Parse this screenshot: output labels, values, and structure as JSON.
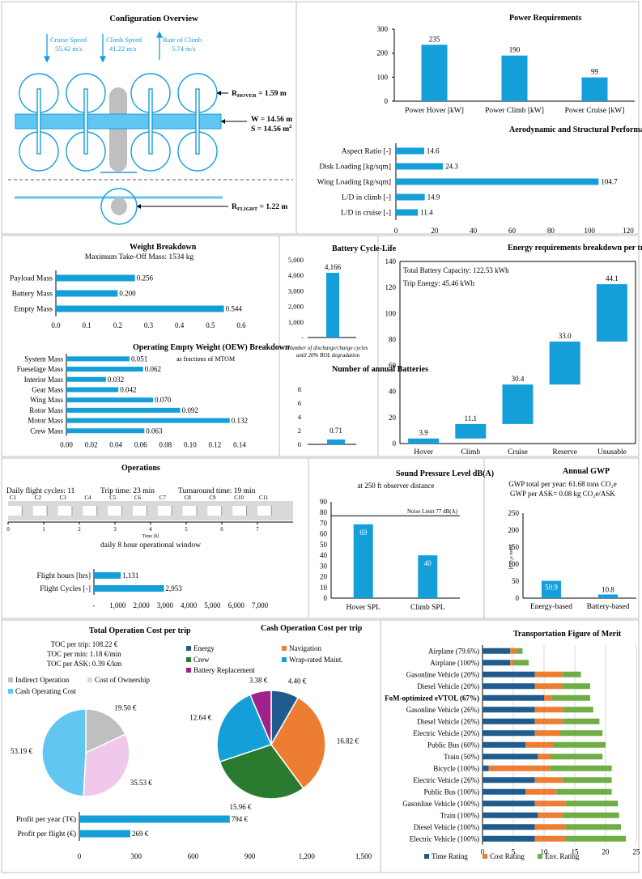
{
  "colors": {
    "blue": "#159fd8",
    "orange": "#ed7d31",
    "green": "#70ad47",
    "darkgreen": "#2a7a30",
    "navy": "#1f5b8c",
    "purple": "#a0208c",
    "pink": "#f0c8ec",
    "gray": "#bfbfbf",
    "lightblue": "#61c6f2",
    "hatch": "#d9d9d9"
  },
  "config": {
    "title": "Configuration Overview",
    "cruise_label": "Cruise Speed",
    "cruise_value": "55.42 m/s",
    "climb_label": "Climb Speed",
    "climb_value": "41.22 m/s",
    "rate_label": "Rate of Climb",
    "rate_value": "5.74 m/s",
    "r_hover": "R",
    "r_hover_sub": "HOVER",
    "r_hover_val": " = 1.59 m",
    "w_text": "W = 14.56 m",
    "s_text": "S = 14.56 m",
    "s_sup": "2",
    "r_flight": "R",
    "r_flight_sub": "FLIGHT",
    "r_flight_val": " = 1.22 m"
  },
  "texts": {
    "mtom": "Maximum Take-Off Mass: 1534 kg",
    "oew_note": "as fractions of MTOM",
    "cycle_caption1": "Number of discharge/charge cycles",
    "cycle_caption2": "until 20% BOL degradation",
    "battery_capacity": "Total Battery Capacity: 122.53 kWh",
    "trip_energy": "Trip Energy: 45.46 kWh",
    "daily_cycles": "Daily flight cycles: 11",
    "trip_time": "Trip time: 23 min",
    "turnaround": "Turnaround time: 19 min",
    "time_axis": "Time [h]",
    "window": "daily 8 hour operational window",
    "spl_subtitle": "at 250 ft observer distance",
    "noise_limit": "Noise Limit 77 dB(A)",
    "gwp_year": "GWP total per year: 61.68 tons CO₂e",
    "gwp_ask": "GWP per ASK= 0.08 kg CO₂e/ASK",
    "gwp_unit": "[CO₂e tons]",
    "toc_trip": "TOC per trip: 108.22 €",
    "toc_min": "TOC per min: 1.18 €/min",
    "toc_ask": "TOC per ASK: 0.39 €/km"
  },
  "chart_data": [
    {
      "id": "power",
      "type": "bar",
      "title": "Power Requirements",
      "categories": [
        "Power Hover [kW]",
        "Power Climb [kW]",
        "Power Cruise [kW]"
      ],
      "values": [
        235,
        190,
        99
      ],
      "ylim": [
        0,
        300
      ],
      "yticks": [
        0,
        100,
        200,
        300
      ]
    },
    {
      "id": "aero",
      "type": "bar",
      "orientation": "horizontal",
      "title": "Aerodynamic and Structural Performance Metrics",
      "categories": [
        "Aspect Ratio [-]",
        "Disk Loading [kg/sqm]",
        "Wing Loading [kg/sqm]",
        "L/D in climb [-]",
        "L/D in cruise [-]"
      ],
      "values": [
        14.6,
        24.3,
        104.7,
        14.9,
        11.4
      ],
      "xlim": [
        0,
        120
      ],
      "xticks": [
        0,
        20,
        40,
        60,
        80,
        100,
        120
      ]
    },
    {
      "id": "weight",
      "type": "bar",
      "orientation": "horizontal",
      "title": "Weight Breakdown",
      "categories": [
        "Payload Mass",
        "Battery Mass",
        "Empty Mass"
      ],
      "values": [
        0.256,
        0.2,
        0.544
      ],
      "xlim": [
        0,
        0.6
      ],
      "xticks": [
        "0.0",
        "0.1",
        "0.2",
        "0.3",
        "0.4",
        "0.5",
        "0.6"
      ]
    },
    {
      "id": "oew",
      "type": "bar",
      "orientation": "horizontal",
      "title": "Operating Empty Weight (OEW) Breakdown",
      "categories": [
        "System Mass",
        "Fueselage Mass",
        "Interior Mass",
        "Gear Mass",
        "Wing Mass",
        "Rotor Mass",
        "Motor Mass",
        "Crew Mass"
      ],
      "values": [
        0.051,
        0.062,
        0.032,
        0.042,
        0.07,
        0.092,
        0.132,
        0.063
      ],
      "xlim": [
        0,
        0.14
      ],
      "xticks": [
        "0.00",
        "0.02",
        "0.04",
        "0.06",
        "0.08",
        "0.10",
        "0.12",
        "0.14"
      ]
    },
    {
      "id": "cycle",
      "type": "bar",
      "title": "Battery Cycle-Life",
      "values": [
        4166
      ],
      "labels": [
        "4,166"
      ],
      "ylim": [
        0,
        5000
      ],
      "yticks": [
        "-",
        "1,000",
        "2,000",
        "3,000",
        "4,000",
        "5,000"
      ]
    },
    {
      "id": "annual_batt",
      "type": "bar",
      "title": "Number of annual Batteries",
      "values": [
        0.71
      ],
      "ylim": [
        0,
        8
      ],
      "yticks": [
        0,
        2,
        4,
        6,
        8
      ]
    },
    {
      "id": "energy",
      "type": "waterfall",
      "title": "Energy requirements breakdown per trip [kWh]",
      "categories": [
        "Hover",
        "Climb",
        "Cruise",
        "Reserve",
        "Unusable"
      ],
      "values": [
        3.9,
        11.1,
        30.4,
        33.0,
        44.1
      ],
      "ylim": [
        0,
        140
      ],
      "yticks": [
        0,
        20,
        40,
        60,
        80,
        100,
        120,
        140
      ]
    },
    {
      "id": "ops_timeline",
      "type": "bar",
      "title": "Operations",
      "categories": [
        "C1",
        "C2",
        "C3",
        "C4",
        "C5",
        "C6",
        "C7",
        "C8",
        "C9",
        "C10",
        "C11"
      ],
      "xticks": [
        0,
        1,
        2,
        3,
        4,
        5,
        6,
        7
      ],
      "xlim": [
        0,
        8
      ]
    },
    {
      "id": "ops_hours",
      "type": "bar",
      "orientation": "horizontal",
      "categories": [
        "Flight hours [hrs]",
        "Flight Cycles [-]"
      ],
      "values": [
        1131,
        2953
      ],
      "labels": [
        "1,131",
        "2,953"
      ],
      "xlim": [
        0,
        7000
      ],
      "xticks": [
        "-",
        "1,000",
        "2,000",
        "3,000",
        "4,000",
        "5,000",
        "6,000",
        "7,000"
      ]
    },
    {
      "id": "spl",
      "type": "bar",
      "title": "Sound Pressure Level dB(A)",
      "categories": [
        "Hover SPL",
        "Climb SPL"
      ],
      "values": [
        69,
        40
      ],
      "ylim": [
        0,
        90
      ],
      "yticks": [
        0,
        10,
        20,
        30,
        40,
        50,
        60,
        70,
        80,
        90
      ],
      "limit": 77
    },
    {
      "id": "gwp",
      "type": "bar",
      "title": "Annual GWP",
      "categories": [
        "Energy-based",
        "Battery-based"
      ],
      "values": [
        50.9,
        10.8
      ],
      "ylim": [
        0,
        250
      ],
      "yticks": [
        0,
        50,
        100,
        150,
        200,
        250
      ]
    },
    {
      "id": "toc_pie",
      "type": "pie",
      "title": "Total Operation Cost per trip",
      "categories": [
        "Indirect Operation",
        "Cost of Ownership",
        "Cash Operating Cost"
      ],
      "values": [
        19.5,
        35.53,
        53.19
      ],
      "labels": [
        "19.50 €",
        "35.53 €",
        "53.19 €"
      ]
    },
    {
      "id": "cash_pie",
      "type": "pie",
      "title": "Cash Operation Cost per trip",
      "categories": [
        "Energy",
        "Navigation",
        "Crew",
        "Wrap-rated Maint.",
        "Battery Replacement"
      ],
      "values": [
        4.4,
        16.82,
        15.96,
        12.64,
        3.38
      ],
      "labels": [
        "4.40 €",
        "16.82 €",
        "15.96 €",
        "12.64 €",
        "3.38 €"
      ]
    },
    {
      "id": "profit",
      "type": "bar",
      "orientation": "horizontal",
      "categories": [
        "Profit per year (T€)",
        "Profit per flight (€)"
      ],
      "values": [
        794,
        269
      ],
      "labels": [
        "794 €",
        "269 €"
      ],
      "xlim": [
        0,
        1500
      ],
      "xticks": [
        "0",
        "300",
        "600",
        "900",
        "1,200",
        "1,500"
      ]
    },
    {
      "id": "fom",
      "type": "bar",
      "orientation": "horizontal",
      "stacked": true,
      "title": "Transportation Figure of Merit",
      "categories": [
        "Airplane (79.6%)",
        "Airplane (100%)",
        "Gasonline Vehicle (20%)",
        "Diesel Vehicle (20%)",
        "FoM-optimized eVTOL (67%)",
        "Gasonline Vehicle (26%)",
        "Diesel Vehicle (26%)",
        "Electric Vehicle (20%)",
        "Public Bus (60%)",
        "Train (50%)",
        "Bicycle (100%)",
        "Electric Vehicle (26%)",
        "Public Bus (100%)",
        "Gasonline Vehicle (100%)",
        "Train (100%)",
        "Diesel Vehicle (100%)",
        "Electric Vehicle (100%)"
      ],
      "series": [
        {
          "name": "Time Rating",
          "values": [
            4.5,
            4.5,
            8.5,
            8.5,
            10,
            8.5,
            8.5,
            8.5,
            7,
            9,
            1,
            8.5,
            7,
            8.5,
            9,
            8.5,
            8.5
          ]
        },
        {
          "name": "Cost Rating",
          "values": [
            1,
            0.5,
            4.5,
            4.5,
            1.2,
            4.5,
            4.5,
            4,
            4.5,
            2,
            10,
            4.5,
            5,
            5,
            4,
            5,
            5
          ]
        },
        {
          "name": "Env. Rating",
          "values": [
            1,
            2.5,
            3,
            4.5,
            6.3,
            5,
            6,
            7,
            8.5,
            8.5,
            10,
            8,
            9,
            8.5,
            9.2,
            9,
            9.8
          ]
        }
      ],
      "xlim": [
        0,
        25
      ],
      "xticks": [
        0,
        5,
        10,
        15,
        20,
        25
      ]
    }
  ]
}
